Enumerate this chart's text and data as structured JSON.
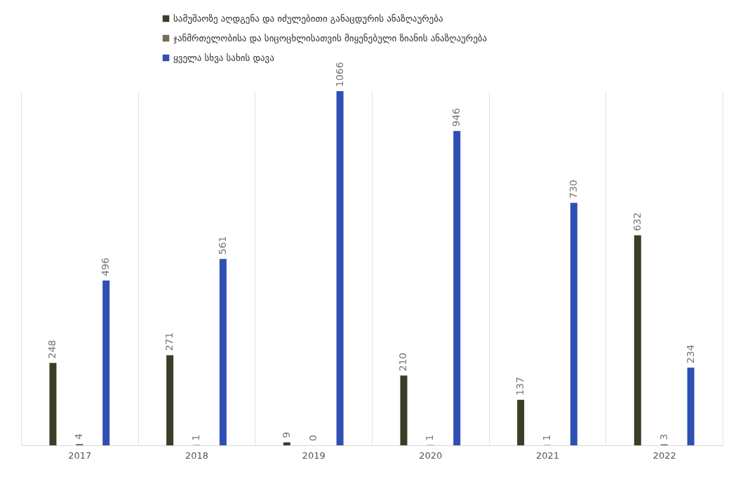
{
  "chart_data": {
    "type": "bar",
    "categories": [
      "2017",
      "2018",
      "2019",
      "2020",
      "2021",
      "2022"
    ],
    "series": [
      {
        "name": "სამუშაოზე აღდგენა და იძულებითი განაცდურის ანაზღაურება",
        "color": "#3b3d26",
        "values": [
          248,
          271,
          9,
          210,
          137,
          632
        ]
      },
      {
        "name": "ჯანმრთელობისა და სიცოცხლისათვის მიყენებული ზიანის ანაზღაურება",
        "color": "#7a6a55",
        "values": [
          4,
          1,
          0,
          1,
          1,
          3
        ]
      },
      {
        "name": "ყველა სხვა სახის დავა",
        "color": "#2f4fb5",
        "values": [
          496,
          561,
          1066,
          946,
          730,
          234
        ]
      }
    ],
    "data_labels": true,
    "legend": "top",
    "grid": "x"
  }
}
